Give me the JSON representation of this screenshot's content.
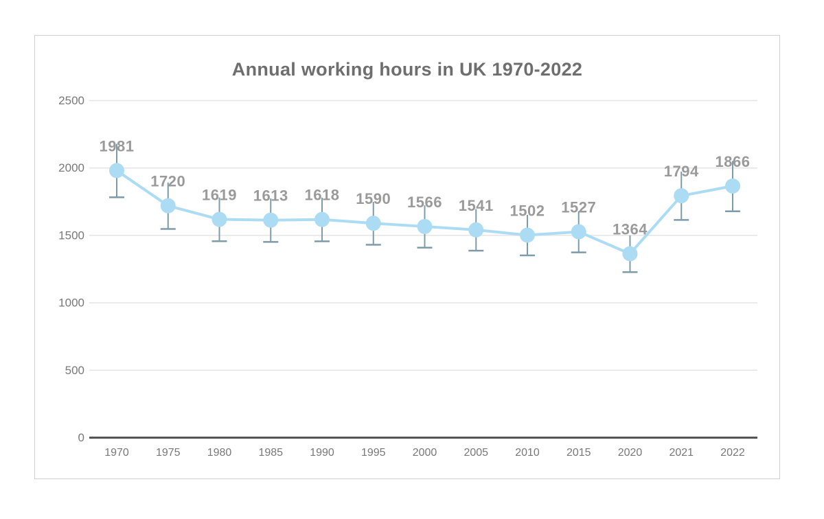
{
  "chart_data": {
    "type": "line",
    "title": "Annual working hours in UK 1970-2022",
    "categories": [
      "1970",
      "1975",
      "1980",
      "1985",
      "1990",
      "1995",
      "2000",
      "2005",
      "2010",
      "2015",
      "2020",
      "2021",
      "2022"
    ],
    "values": [
      1981,
      1720,
      1619,
      1613,
      1618,
      1590,
      1566,
      1541,
      1502,
      1527,
      1364,
      1794,
      1866
    ],
    "error_bars": [
      198,
      172,
      162,
      161,
      162,
      159,
      157,
      154,
      150,
      153,
      136,
      179,
      187
    ],
    "data_labels_shown": true,
    "xlabel": "",
    "ylabel": "",
    "y_ticks": [
      0,
      500,
      1000,
      1500,
      2000,
      2500
    ],
    "ylim": [
      0,
      2500
    ],
    "grid": "horizontal",
    "legend": "none",
    "colors": {
      "line": "#abdcf4",
      "marker": "#abdcf4",
      "error_bar": "#7d9caa",
      "data_label": "#9a9a9a",
      "title": "#6e6e6e",
      "axis_text": "#787878",
      "gridline": "#e4e4e6",
      "axis_line": "#555555",
      "card_border": "#d0d0d0",
      "background": "#ffffff"
    }
  }
}
